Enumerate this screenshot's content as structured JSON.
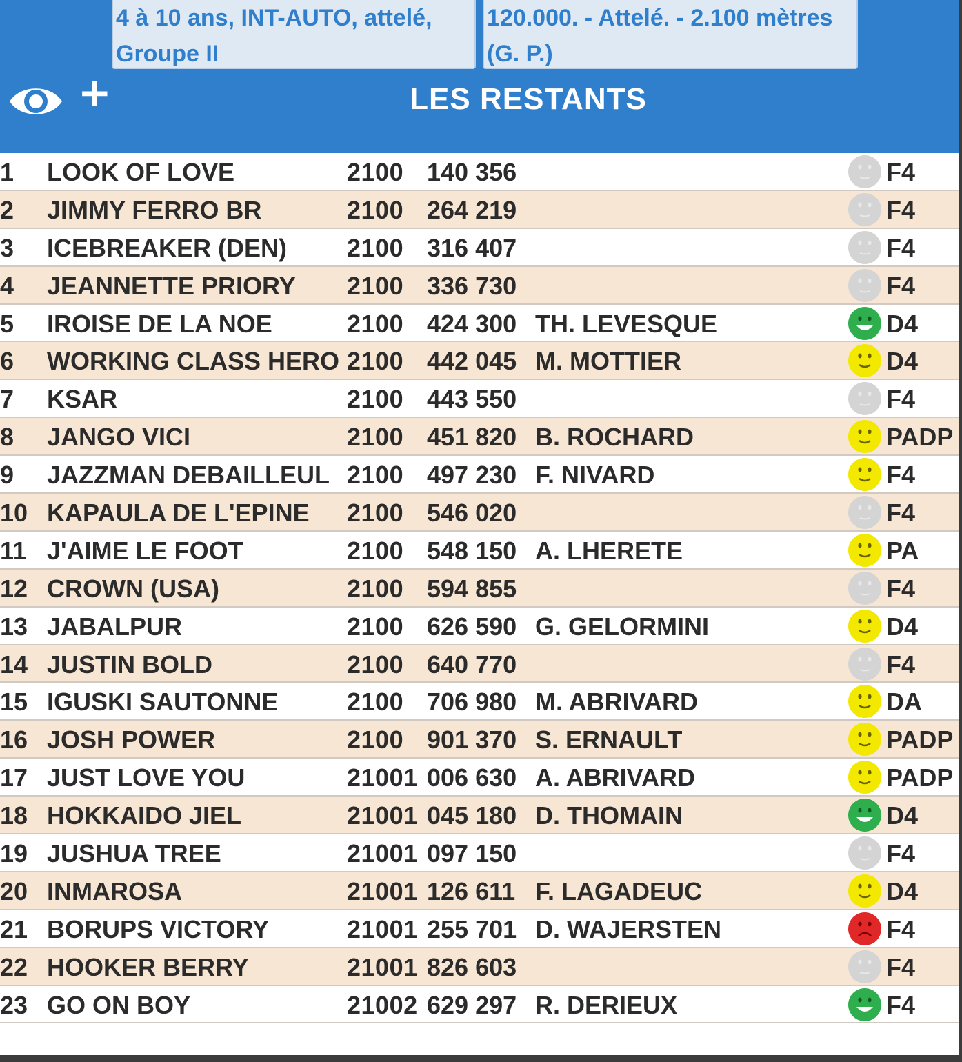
{
  "header": {
    "info_left": [
      "4 à 10 ans, INT-AUTO, attelé,",
      "Groupe II"
    ],
    "info_right": [
      "120.000. - Attelé. - 2.100 mètres",
      "(G. P.)"
    ],
    "eye_icon": "eye-icon",
    "plus_label": "+",
    "title": "LES RESTANTS"
  },
  "colors": {
    "header_blue": "#2f7fcc",
    "row_alt": "#f7e6d3",
    "mood_gray": "#d4d4d4",
    "mood_yellow": "#f2e800",
    "mood_green": "#2fae4e",
    "mood_red": "#e02828"
  },
  "rows": [
    {
      "num": "1",
      "name": "LOOK OF LOVE",
      "dist": "2100",
      "value": "140 356",
      "driver": "",
      "mood": "gray",
      "code": "F4"
    },
    {
      "num": "2",
      "name": "JIMMY FERRO BR",
      "dist": "2100",
      "value": "264 219",
      "driver": "",
      "mood": "gray",
      "code": "F4"
    },
    {
      "num": "3",
      "name": "ICEBREAKER (DEN)",
      "dist": "2100",
      "value": "316 407",
      "driver": "",
      "mood": "gray",
      "code": "F4"
    },
    {
      "num": "4",
      "name": "JEANNETTE PRIORY",
      "dist": "2100",
      "value": "336 730",
      "driver": "",
      "mood": "gray",
      "code": "F4"
    },
    {
      "num": "5",
      "name": "IROISE DE LA NOE",
      "dist": "2100",
      "value": "424 300",
      "driver": "TH. LEVESQUE",
      "mood": "green",
      "code": "D4"
    },
    {
      "num": "6",
      "name": "WORKING CLASS HERO",
      "dist": "2100",
      "value": "442 045",
      "driver": "M. MOTTIER",
      "mood": "yellow",
      "code": "D4"
    },
    {
      "num": "7",
      "name": "KSAR",
      "dist": "2100",
      "value": "443 550",
      "driver": "",
      "mood": "gray",
      "code": "F4"
    },
    {
      "num": "8",
      "name": "JANGO VICI",
      "dist": "2100",
      "value": "451 820",
      "driver": "B. ROCHARD",
      "mood": "yellow",
      "code": "PADP"
    },
    {
      "num": "9",
      "name": "JAZZMAN DEBAILLEUL",
      "dist": "2100",
      "value": "497 230",
      "driver": "F. NIVARD",
      "mood": "yellow",
      "code": "F4"
    },
    {
      "num": "10",
      "name": "KAPAULA DE L'EPINE",
      "dist": "2100",
      "value": "546 020",
      "driver": "",
      "mood": "gray",
      "code": "F4"
    },
    {
      "num": "11",
      "name": "J'AIME LE FOOT",
      "dist": "2100",
      "value": "548 150",
      "driver": "A. LHERETE",
      "mood": "yellow",
      "code": "PA"
    },
    {
      "num": "12",
      "name": "CROWN (USA)",
      "dist": "2100",
      "value": "594 855",
      "driver": "",
      "mood": "gray",
      "code": "F4"
    },
    {
      "num": "13",
      "name": "JABALPUR",
      "dist": "2100",
      "value": "626 590",
      "driver": "G. GELORMINI",
      "mood": "yellow",
      "code": "D4"
    },
    {
      "num": "14",
      "name": "JUSTIN BOLD",
      "dist": "2100",
      "value": "640 770",
      "driver": "",
      "mood": "gray",
      "code": "F4"
    },
    {
      "num": "15",
      "name": "IGUSKI SAUTONNE",
      "dist": "2100",
      "value": "706 980",
      "driver": "M. ABRIVARD",
      "mood": "yellow",
      "code": "DA"
    },
    {
      "num": "16",
      "name": "JOSH POWER",
      "dist": "2100",
      "value": "901 370",
      "driver": "S. ERNAULT",
      "mood": "yellow",
      "code": "PADP"
    },
    {
      "num": "17",
      "name": "JUST LOVE YOU",
      "dist": "21001",
      "value": "006 630",
      "driver": "A. ABRIVARD",
      "mood": "yellow",
      "code": "PADP"
    },
    {
      "num": "18",
      "name": "HOKKAIDO JIEL",
      "dist": "21001",
      "value": "045 180",
      "driver": "D. THOMAIN",
      "mood": "green",
      "code": "D4"
    },
    {
      "num": "19",
      "name": "JUSHUA TREE",
      "dist": "21001",
      "value": "097 150",
      "driver": "",
      "mood": "gray",
      "code": "F4"
    },
    {
      "num": "20",
      "name": "INMAROSA",
      "dist": "21001",
      "value": "126 611",
      "driver": "F. LAGADEUC",
      "mood": "yellow",
      "code": "D4"
    },
    {
      "num": "21",
      "name": "BORUPS VICTORY",
      "dist": "21001",
      "value": "255 701",
      "driver": "D. WAJERSTEN",
      "mood": "red",
      "code": "F4"
    },
    {
      "num": "22",
      "name": "HOOKER BERRY",
      "dist": "21001",
      "value": "826 603",
      "driver": "",
      "mood": "gray",
      "code": "F4"
    },
    {
      "num": "23",
      "name": "GO ON BOY",
      "dist": "21002",
      "value": "629 297",
      "driver": "R. DERIEUX",
      "mood": "green",
      "code": "F4"
    }
  ]
}
